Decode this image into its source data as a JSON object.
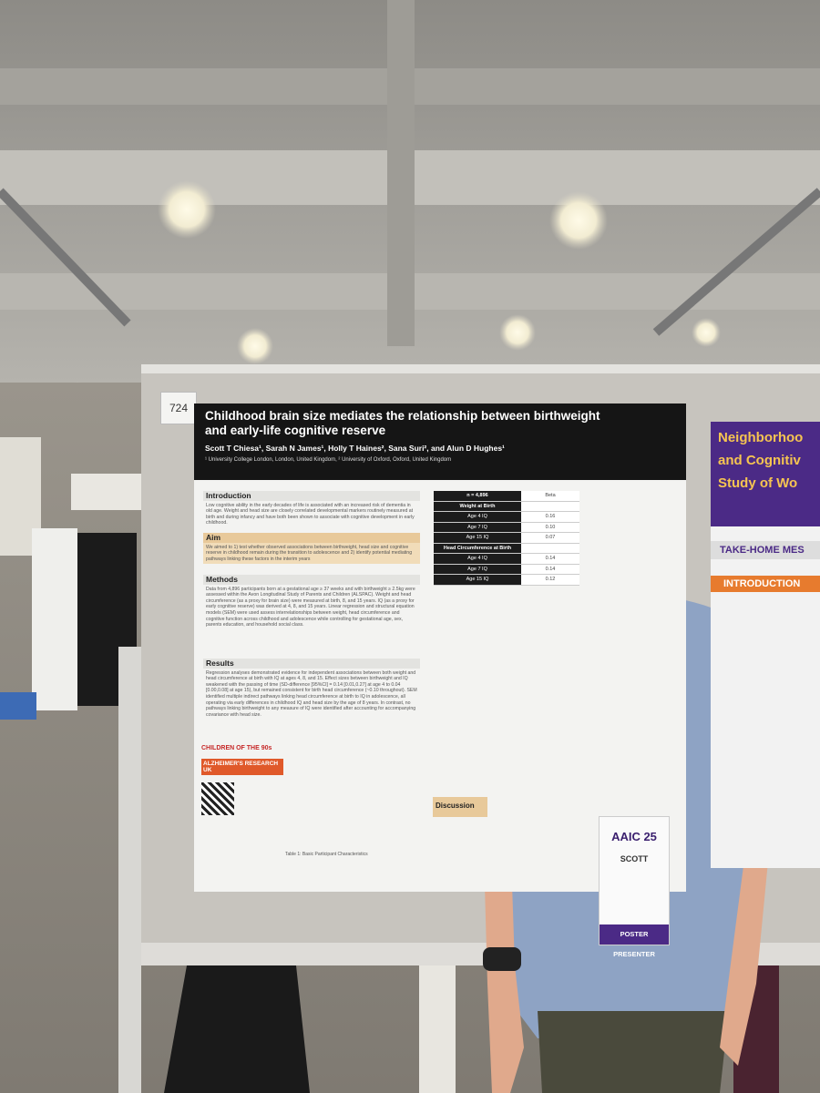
{
  "board_number": "724",
  "poster": {
    "title_lines": [
      "Childhood brain size mediates the relationship between birthweight",
      "and early-life cognitive reserve"
    ],
    "authors": "Scott T Chiesa¹, Sarah N James¹, Holly T Haines², Sana Suri², and Alun D Hughes¹",
    "affiliations": "¹ University College London, London, United Kingdom, ² University of Oxford, Oxford, United Kingdom",
    "sections": [
      {
        "heading": "Introduction",
        "text": "Low cognitive ability in the early decades of life is associated with an increased risk of dementia in old age. Weight and head size are closely correlated developmental markers routinely measured at birth and during infancy and have both been shown to associate with cognitive development in early childhood."
      },
      {
        "heading": "Aim",
        "text": "We aimed to 1) test whether observed associations between birthweight, head size and cognitive reserve in childhood remain during the transition to adolescence and 2) identify potential mediating pathways linking these factors in the interim years"
      },
      {
        "heading": "Methods",
        "text": "Data from 4,896 participants born at a gestational age ≥ 37 weeks and with birthweight ≥ 2.5kg were assessed within the Avon Longitudinal Study of Parents and Children (ALSPAC). Weight and head circumference (as a proxy for brain size) were measured at birth, 8, and 15 years. IQ (as a proxy for early cognitive reserve) was derived at 4, 8, and 15 years. Linear regression and structural equation models (SEM) were used assess interrelationships between weight, head circumference and cognitive function across childhood and adolescence while controlling for gestational age, sex, parents education, and household social class."
      },
      {
        "heading": "Results",
        "text": "Regression analyses demonstrated evidence for independent associations between both weight and head circumference at birth with IQ at ages 4, 8, and 15. Effect sizes between birthweight and IQ weakened with the passing of time (SD-difference [95%CI] = 0.14 [0.01,0.27] at age 4 to 0.04 [0.00,0.08] at age 15), but remained consistent for birth head circumference (~0.10 throughout). SEM identified multiple indirect pathways linking head circumference at birth to IQ in adolescence, all operating via early differences in childhood IQ and head size by the age of 8 years. In contrast, no pathways linking birthweight to any measure of IQ were identified after accounting for accompanying covariance with head size."
      }
    ],
    "discussion_heading": "Discussion",
    "table": {
      "header": [
        "n = 4,896",
        "Beta"
      ],
      "rows": [
        [
          "Weight at Birth",
          ""
        ],
        [
          "Age 4 IQ",
          "0.16"
        ],
        [
          "Age 7 IQ",
          "0.10"
        ],
        [
          "Age 15 IQ",
          "0.07"
        ],
        [
          "Head Circumference at Birth",
          ""
        ],
        [
          "Age 4 IQ",
          "0.14"
        ],
        [
          "Age 7 IQ",
          "0.14"
        ],
        [
          "Age 15 IQ",
          "0.12"
        ]
      ]
    },
    "logos": [
      "CHILDREN OF THE 90s",
      "ALZHEIMER'S RESEARCH UK"
    ],
    "caption": "Table 1: Basic Participant Characteristics"
  },
  "neighbor_poster": {
    "title_lines": [
      "Neighborhoo",
      "and Cognitiv",
      "Study of Wo"
    ],
    "take_home": "TAKE-HOME MES",
    "intro": "INTRODUCTION"
  },
  "badge": {
    "event": "AAIC 25",
    "name": "SCOTT",
    "role": "POSTER PRESENTER"
  }
}
